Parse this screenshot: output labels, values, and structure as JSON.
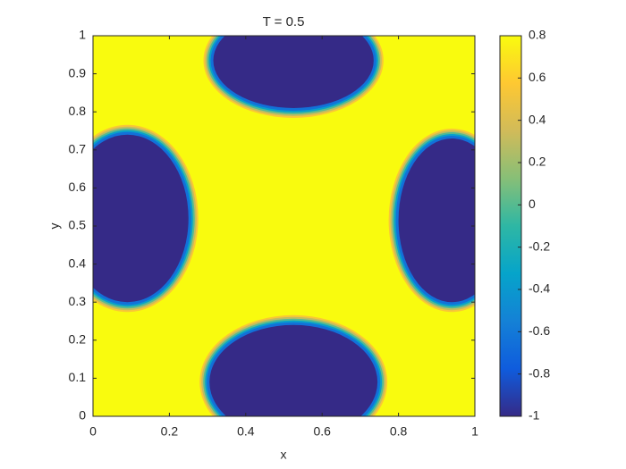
{
  "chart_data": {
    "type": "heatmap",
    "title": "T = 0.5",
    "x_label": "x",
    "y_label": "y",
    "xlim": [
      0,
      1
    ],
    "ylim": [
      0,
      1
    ],
    "xticks": [
      0,
      0.2,
      0.4,
      0.6,
      0.8,
      1
    ],
    "yticks": [
      0,
      0.1,
      0.2,
      0.3,
      0.4,
      0.5,
      0.6,
      0.7,
      0.8,
      0.9,
      1
    ],
    "clim": [
      -1,
      0.8
    ],
    "cticks": [
      -1,
      -0.8,
      -0.6,
      -0.4,
      -0.2,
      0,
      0.2,
      0.4,
      0.6,
      0.8
    ],
    "colormap": [
      "#352a87",
      "#0f5cdd",
      "#1481d6",
      "#06a4ca",
      "#2eb7a4",
      "#87bf77",
      "#d1bb59",
      "#fec832",
      "#f9fb0e"
    ],
    "background_value": 0.8,
    "regions": [
      {
        "cx": 0.525,
        "cy": 0.935,
        "rx": 0.21,
        "ry": 0.125,
        "value": -1
      },
      {
        "cx": 0.525,
        "cy": 0.09,
        "rx": 0.22,
        "ry": 0.15,
        "value": -1
      },
      {
        "cx": 0.09,
        "cy": 0.52,
        "rx": 0.16,
        "ry": 0.22,
        "value": -1
      },
      {
        "cx": 0.94,
        "cy": 0.515,
        "rx": 0.14,
        "ry": 0.215,
        "value": -1
      }
    ]
  }
}
